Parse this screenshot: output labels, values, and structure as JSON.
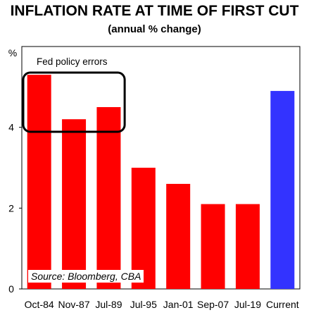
{
  "chart_data": {
    "type": "bar",
    "title": "INFLATION RATE AT TIME OF FIRST CUT",
    "subtitle": "(annual % change)",
    "ylabel": "%",
    "xlabel": "",
    "ylim": [
      0,
      6
    ],
    "yticks": [
      0,
      2,
      4
    ],
    "categories": [
      "Oct-84",
      "Nov-87",
      "Jul-89",
      "Jul-95",
      "Jan-01",
      "Sep-07",
      "Jul-19",
      "Current"
    ],
    "values": [
      5.3,
      4.2,
      4.5,
      3.0,
      2.6,
      2.1,
      2.1,
      4.9
    ],
    "colors": [
      "#ff0000",
      "#ff0000",
      "#ff0000",
      "#ff0000",
      "#ff0000",
      "#ff0000",
      "#ff0000",
      "#3333ff"
    ],
    "annotation": "Fed policy errors",
    "annotation_highlights": [
      "Oct-84",
      "Nov-87",
      "Jul-89"
    ],
    "grid": false
  },
  "source": "Source: Bloomberg, CBA"
}
